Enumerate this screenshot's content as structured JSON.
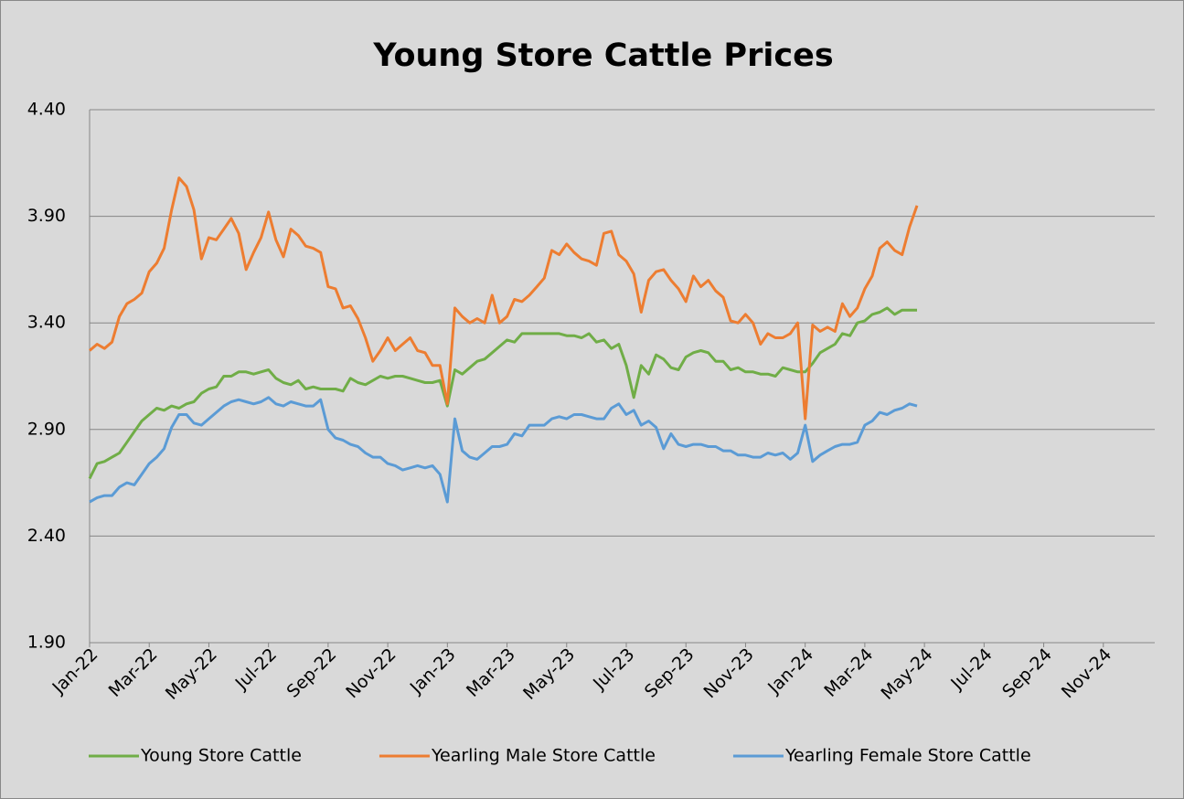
{
  "chart_data": {
    "type": "line",
    "title": "Young Store Cattle Prices",
    "x": [
      "2022-01",
      "2022-01",
      "2022-01",
      "2022-01",
      "2022-02",
      "2022-02",
      "2022-02",
      "2022-02",
      "2022-03",
      "2022-03",
      "2022-03",
      "2022-03",
      "2022-04",
      "2022-04",
      "2022-04",
      "2022-04",
      "2022-05",
      "2022-05",
      "2022-05",
      "2022-05",
      "2022-06",
      "2022-06",
      "2022-06",
      "2022-06",
      "2022-07",
      "2022-07",
      "2022-07",
      "2022-07",
      "2022-08",
      "2022-08",
      "2022-08",
      "2022-08",
      "2022-09",
      "2022-09",
      "2022-09",
      "2022-09",
      "2022-10",
      "2022-10",
      "2022-10",
      "2022-10",
      "2022-11",
      "2022-11",
      "2022-11",
      "2022-11",
      "2022-12",
      "2022-12",
      "2022-12",
      "2022-12",
      "2023-01",
      "2023-01",
      "2023-01",
      "2023-01",
      "2023-02",
      "2023-02",
      "2023-02",
      "2023-02",
      "2023-03",
      "2023-03",
      "2023-03",
      "2023-03",
      "2023-04",
      "2023-04",
      "2023-04",
      "2023-04",
      "2023-05",
      "2023-05",
      "2023-05",
      "2023-05",
      "2023-06",
      "2023-06",
      "2023-06",
      "2023-06",
      "2023-07",
      "2023-07",
      "2023-07",
      "2023-07",
      "2023-08",
      "2023-08",
      "2023-08",
      "2023-08",
      "2023-09",
      "2023-09",
      "2023-09",
      "2023-09",
      "2023-10",
      "2023-10",
      "2023-10",
      "2023-10",
      "2023-11",
      "2023-11",
      "2023-11",
      "2023-11",
      "2023-12",
      "2023-12",
      "2023-12",
      "2023-12",
      "2024-01",
      "2024-01",
      "2024-01",
      "2024-01",
      "2024-02",
      "2024-02",
      "2024-02",
      "2024-02",
      "2024-03",
      "2024-03",
      "2024-03",
      "2024-03",
      "2024-04",
      "2024-04",
      "2024-04",
      "2024-04"
    ],
    "series": [
      {
        "name": "Young Store Cattle",
        "color": "#70ad47",
        "values": [
          2.67,
          2.74,
          2.75,
          2.77,
          2.79,
          2.84,
          2.89,
          2.94,
          2.97,
          3.0,
          2.99,
          3.01,
          3.0,
          3.02,
          3.03,
          3.07,
          3.09,
          3.1,
          3.15,
          3.15,
          3.17,
          3.17,
          3.16,
          3.17,
          3.18,
          3.14,
          3.12,
          3.11,
          3.13,
          3.09,
          3.1,
          3.09,
          3.09,
          3.09,
          3.08,
          3.14,
          3.12,
          3.11,
          3.13,
          3.15,
          3.14,
          3.15,
          3.15,
          3.14,
          3.13,
          3.12,
          3.12,
          3.13,
          3.01,
          3.18,
          3.16,
          3.19,
          3.22,
          3.23,
          3.26,
          3.29,
          3.32,
          3.31,
          3.35,
          3.35,
          3.35,
          3.35,
          3.35,
          3.35,
          3.34,
          3.34,
          3.33,
          3.35,
          3.31,
          3.32,
          3.28,
          3.3,
          3.2,
          3.05,
          3.2,
          3.16,
          3.25,
          3.23,
          3.19,
          3.18,
          3.24,
          3.26,
          3.27,
          3.26,
          3.22,
          3.22,
          3.18,
          3.19,
          3.17,
          3.17,
          3.16,
          3.16,
          3.15,
          3.19,
          3.18,
          3.17,
          3.17,
          3.21,
          3.26,
          3.28,
          3.3,
          3.35,
          3.34,
          3.4,
          3.41,
          3.44,
          3.45,
          3.47,
          3.44,
          3.46,
          3.46,
          3.46
        ]
      },
      {
        "name": "Yearling Male Store Cattle",
        "color": "#ed7d31",
        "values": [
          3.27,
          3.3,
          3.28,
          3.31,
          3.43,
          3.49,
          3.51,
          3.54,
          3.64,
          3.68,
          3.75,
          3.93,
          4.08,
          4.04,
          3.93,
          3.7,
          3.8,
          3.79,
          3.84,
          3.89,
          3.82,
          3.65,
          3.73,
          3.8,
          3.92,
          3.79,
          3.71,
          3.84,
          3.81,
          3.76,
          3.75,
          3.73,
          3.57,
          3.56,
          3.47,
          3.48,
          3.42,
          3.33,
          3.22,
          3.27,
          3.33,
          3.27,
          3.3,
          3.33,
          3.27,
          3.26,
          3.2,
          3.2,
          3.02,
          3.47,
          3.43,
          3.4,
          3.42,
          3.4,
          3.53,
          3.4,
          3.43,
          3.51,
          3.5,
          3.53,
          3.57,
          3.61,
          3.74,
          3.72,
          3.77,
          3.73,
          3.7,
          3.69,
          3.67,
          3.82,
          3.83,
          3.72,
          3.69,
          3.63,
          3.45,
          3.6,
          3.64,
          3.65,
          3.6,
          3.56,
          3.5,
          3.62,
          3.57,
          3.6,
          3.55,
          3.52,
          3.41,
          3.4,
          3.44,
          3.4,
          3.3,
          3.35,
          3.33,
          3.33,
          3.35,
          3.4,
          2.95,
          3.39,
          3.36,
          3.38,
          3.36,
          3.49,
          3.43,
          3.47,
          3.56,
          3.62,
          3.75,
          3.78,
          3.74,
          3.72,
          3.85,
          3.95
        ]
      },
      {
        "name": "Yearling Female Store Cattle",
        "color": "#5b9bd5",
        "values": [
          2.56,
          2.58,
          2.59,
          2.59,
          2.63,
          2.65,
          2.64,
          2.69,
          2.74,
          2.77,
          2.81,
          2.91,
          2.97,
          2.97,
          2.93,
          2.92,
          2.95,
          2.98,
          3.01,
          3.03,
          3.04,
          3.03,
          3.02,
          3.03,
          3.05,
          3.02,
          3.01,
          3.03,
          3.02,
          3.01,
          3.01,
          3.04,
          2.9,
          2.86,
          2.85,
          2.83,
          2.82,
          2.79,
          2.77,
          2.77,
          2.74,
          2.73,
          2.71,
          2.72,
          2.73,
          2.72,
          2.73,
          2.69,
          2.56,
          2.95,
          2.8,
          2.77,
          2.76,
          2.79,
          2.82,
          2.82,
          2.83,
          2.88,
          2.87,
          2.92,
          2.92,
          2.92,
          2.95,
          2.96,
          2.95,
          2.97,
          2.97,
          2.96,
          2.95,
          2.95,
          3.0,
          3.02,
          2.97,
          2.99,
          2.92,
          2.94,
          2.91,
          2.81,
          2.88,
          2.83,
          2.82,
          2.83,
          2.83,
          2.82,
          2.82,
          2.8,
          2.8,
          2.78,
          2.78,
          2.77,
          2.77,
          2.79,
          2.78,
          2.79,
          2.76,
          2.79,
          2.92,
          2.75,
          2.78,
          2.8,
          2.82,
          2.83,
          2.83,
          2.84,
          2.92,
          2.94,
          2.98,
          2.97,
          2.99,
          3.0,
          3.02,
          3.01
        ]
      }
    ],
    "xlim": [
      "2022-01",
      "2025-01"
    ],
    "xticks": [
      {
        "value": "2022-01",
        "label": "Jan-22"
      },
      {
        "value": "2022-03",
        "label": "Mar-22"
      },
      {
        "value": "2022-05",
        "label": "May-22"
      },
      {
        "value": "2022-07",
        "label": "Jul-22"
      },
      {
        "value": "2022-09",
        "label": "Sep-22"
      },
      {
        "value": "2022-11",
        "label": "Nov-22"
      },
      {
        "value": "2023-01",
        "label": "Jan-23"
      },
      {
        "value": "2023-03",
        "label": "Mar-23"
      },
      {
        "value": "2023-05",
        "label": "May-23"
      },
      {
        "value": "2023-07",
        "label": "Jul-23"
      },
      {
        "value": "2023-09",
        "label": "Sep-23"
      },
      {
        "value": "2023-11",
        "label": "Nov-23"
      },
      {
        "value": "2024-01",
        "label": "Jan-24"
      },
      {
        "value": "2024-03",
        "label": "Mar-24"
      },
      {
        "value": "2024-05",
        "label": "May-24"
      },
      {
        "value": "2024-07",
        "label": "Jul-24"
      },
      {
        "value": "2024-09",
        "label": "Sep-24"
      },
      {
        "value": "2024-11",
        "label": "Nov-24"
      }
    ],
    "ylim": [
      1.9,
      4.4
    ],
    "yticks": [
      {
        "value": 1.9,
        "label": "1.90"
      },
      {
        "value": 2.4,
        "label": "2.40"
      },
      {
        "value": 2.9,
        "label": "2.90"
      },
      {
        "value": 3.4,
        "label": "3.40"
      },
      {
        "value": 3.9,
        "label": "3.90"
      },
      {
        "value": 4.4,
        "label": "4.40"
      }
    ],
    "grid": true,
    "legend": "bottom"
  }
}
